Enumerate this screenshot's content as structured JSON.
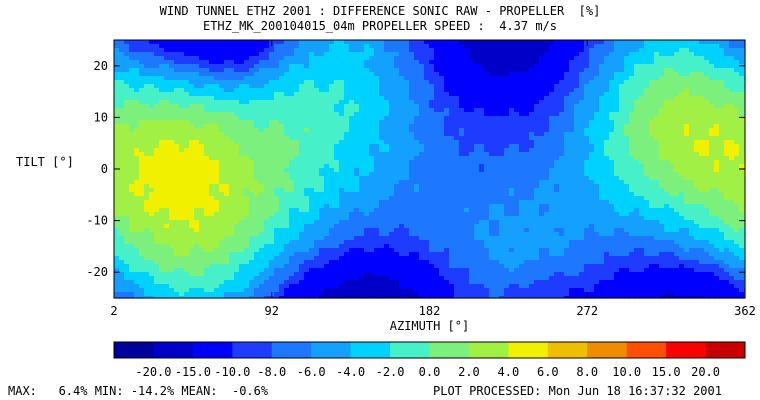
{
  "chart_data": {
    "type": "heatmap",
    "title": "WIND TUNNEL ETHZ 2001 : DIFFERENCE SONIC RAW - PROPELLER  [%]",
    "subtitle": "ETHZ_MK_200104015_04m PROPELLER SPEED :  4.37 m/s",
    "xlabel": "AZIMUTH [°]",
    "ylabel": "TILT [°]",
    "xlim": [
      2,
      362
    ],
    "ylim": [
      -25,
      25
    ],
    "xticks": [
      "2",
      "92",
      "182",
      "272",
      "362"
    ],
    "yticks": [
      "20",
      "10",
      "0",
      "-10",
      "-20"
    ],
    "colorbar_labels": [
      "-20.0",
      "-15.0",
      "-10.0",
      "-8.0",
      "-6.0",
      "-4.0",
      "-2.0",
      "0.0",
      "2.0",
      "4.0",
      "6.0",
      "8.0",
      "10.0",
      "15.0",
      "20.0"
    ],
    "colorbar_colors": [
      "#00009b",
      "#0000c8",
      "#0000ff",
      "#1e3cff",
      "#1e78ff",
      "#14a0ff",
      "#00d2ff",
      "#46f0c8",
      "#7cf07c",
      "#a0f046",
      "#f0f000",
      "#f0be00",
      "#f08c00",
      "#ff5000",
      "#ff0000",
      "#c80000"
    ],
    "stats": {
      "max": "6.4%",
      "min": "-14.2%",
      "mean": "-0.6%"
    },
    "grid": false
  },
  "footer": {
    "stats_text": "MAX:   6.4% MIN: -14.2% MEAN:  -0.6%",
    "processed_text": "PLOT PROCESSED: Mon Jun 18 16:37:32 2001"
  }
}
